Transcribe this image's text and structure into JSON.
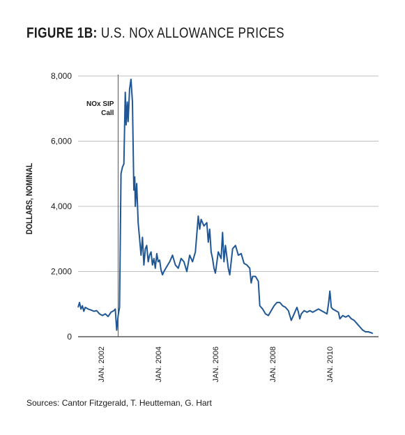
{
  "title": {
    "prefix": "FIGURE 1B:",
    "text": "U.S. NOx ALLOWANCE PRICES"
  },
  "source": "Sources: Cantor Fitzgerald, T. Heutteman, G. Hart",
  "colors": {
    "line": "#1f5796",
    "grid": "#bfbfbf",
    "annotation": "#555555",
    "text": "#1a1a1a"
  },
  "chart_data": {
    "type": "line",
    "title": "U.S. NOx ALLOWANCE PRICES",
    "ylabel": "DOLLARS, NOMINAL",
    "xlabel": "",
    "ylim": [
      0,
      8000
    ],
    "xlim": [
      2001.2,
      2011.7
    ],
    "yticks": [
      0,
      2000,
      4000,
      6000,
      8000
    ],
    "ytick_labels": [
      "0",
      "2,000",
      "4,000",
      "6,000",
      "8,000"
    ],
    "xticks": [
      2002,
      2004,
      2006,
      2008,
      2010
    ],
    "xtick_labels": [
      "JAN. 2002",
      "JAN. 2004",
      "JAN. 2006",
      "JAN. 2008",
      "JAN. 2010"
    ],
    "grid": "horizontal",
    "annotation": {
      "text": [
        "NOx SIP",
        "Call"
      ],
      "x": 2002.6
    },
    "series": [
      {
        "points": [
          [
            2001.2,
            900
          ],
          [
            2001.25,
            1050
          ],
          [
            2001.3,
            850
          ],
          [
            2001.35,
            950
          ],
          [
            2001.4,
            780
          ],
          [
            2001.45,
            900
          ],
          [
            2001.55,
            850
          ],
          [
            2001.65,
            820
          ],
          [
            2001.75,
            780
          ],
          [
            2001.85,
            800
          ],
          [
            2001.95,
            700
          ],
          [
            2002.05,
            650
          ],
          [
            2002.15,
            700
          ],
          [
            2002.25,
            620
          ],
          [
            2002.35,
            750
          ],
          [
            2002.45,
            800
          ],
          [
            2002.5,
            850
          ],
          [
            2002.55,
            200
          ],
          [
            2002.6,
            650
          ],
          [
            2002.65,
            900
          ],
          [
            2002.7,
            5000
          ],
          [
            2002.75,
            5200
          ],
          [
            2002.8,
            5300
          ],
          [
            2002.85,
            7500
          ],
          [
            2002.88,
            6500
          ],
          [
            2002.92,
            7200
          ],
          [
            2002.95,
            6600
          ],
          [
            2003.0,
            7600
          ],
          [
            2003.05,
            7900
          ],
          [
            2003.1,
            7200
          ],
          [
            2003.15,
            4500
          ],
          [
            2003.18,
            4900
          ],
          [
            2003.2,
            4000
          ],
          [
            2003.25,
            4700
          ],
          [
            2003.3,
            3500
          ],
          [
            2003.35,
            3000
          ],
          [
            2003.4,
            2500
          ],
          [
            2003.45,
            3050
          ],
          [
            2003.5,
            2200
          ],
          [
            2003.55,
            2700
          ],
          [
            2003.6,
            2800
          ],
          [
            2003.65,
            2300
          ],
          [
            2003.7,
            2500
          ],
          [
            2003.75,
            2600
          ],
          [
            2003.8,
            2200
          ],
          [
            2003.85,
            2400
          ],
          [
            2003.9,
            2100
          ],
          [
            2003.95,
            2550
          ],
          [
            2004.0,
            2300
          ],
          [
            2004.05,
            2350
          ],
          [
            2004.1,
            2050
          ],
          [
            2004.15,
            1900
          ],
          [
            2004.2,
            2000
          ],
          [
            2004.3,
            2150
          ],
          [
            2004.4,
            2300
          ],
          [
            2004.5,
            2500
          ],
          [
            2004.6,
            2200
          ],
          [
            2004.7,
            2100
          ],
          [
            2004.8,
            2400
          ],
          [
            2004.9,
            2300
          ],
          [
            2005.0,
            2000
          ],
          [
            2005.1,
            2500
          ],
          [
            2005.2,
            2300
          ],
          [
            2005.3,
            2600
          ],
          [
            2005.4,
            3700
          ],
          [
            2005.45,
            3300
          ],
          [
            2005.5,
            3600
          ],
          [
            2005.6,
            3400
          ],
          [
            2005.7,
            3500
          ],
          [
            2005.75,
            2900
          ],
          [
            2005.8,
            3300
          ],
          [
            2005.85,
            2600
          ],
          [
            2005.9,
            2400
          ],
          [
            2005.95,
            2100
          ],
          [
            2006.0,
            1950
          ],
          [
            2006.1,
            2600
          ],
          [
            2006.2,
            2400
          ],
          [
            2006.25,
            3200
          ],
          [
            2006.3,
            2300
          ],
          [
            2006.35,
            2800
          ],
          [
            2006.45,
            2100
          ],
          [
            2006.5,
            1900
          ],
          [
            2006.6,
            2700
          ],
          [
            2006.7,
            2800
          ],
          [
            2006.8,
            2500
          ],
          [
            2006.9,
            2550
          ],
          [
            2007.0,
            2250
          ],
          [
            2007.1,
            2200
          ],
          [
            2007.2,
            2100
          ],
          [
            2007.25,
            1650
          ],
          [
            2007.3,
            1850
          ],
          [
            2007.4,
            1850
          ],
          [
            2007.5,
            1700
          ],
          [
            2007.55,
            950
          ],
          [
            2007.65,
            850
          ],
          [
            2007.75,
            700
          ],
          [
            2007.85,
            650
          ],
          [
            2007.95,
            800
          ],
          [
            2008.05,
            950
          ],
          [
            2008.15,
            1050
          ],
          [
            2008.25,
            1050
          ],
          [
            2008.35,
            950
          ],
          [
            2008.45,
            900
          ],
          [
            2008.55,
            800
          ],
          [
            2008.6,
            650
          ],
          [
            2008.65,
            500
          ],
          [
            2008.75,
            700
          ],
          [
            2008.85,
            900
          ],
          [
            2008.9,
            750
          ],
          [
            2008.95,
            550
          ],
          [
            2009.0,
            700
          ],
          [
            2009.1,
            800
          ],
          [
            2009.2,
            750
          ],
          [
            2009.3,
            800
          ],
          [
            2009.4,
            750
          ],
          [
            2009.5,
            800
          ],
          [
            2009.6,
            850
          ],
          [
            2009.7,
            800
          ],
          [
            2009.8,
            750
          ],
          [
            2009.9,
            700
          ],
          [
            2009.95,
            1000
          ],
          [
            2010.0,
            1400
          ],
          [
            2010.05,
            900
          ],
          [
            2010.1,
            850
          ],
          [
            2010.2,
            800
          ],
          [
            2010.3,
            750
          ],
          [
            2010.35,
            550
          ],
          [
            2010.45,
            650
          ],
          [
            2010.55,
            600
          ],
          [
            2010.65,
            650
          ],
          [
            2010.75,
            550
          ],
          [
            2010.85,
            500
          ],
          [
            2010.95,
            400
          ],
          [
            2011.05,
            300
          ],
          [
            2011.15,
            200
          ],
          [
            2011.25,
            150
          ],
          [
            2011.35,
            150
          ],
          [
            2011.45,
            120
          ],
          [
            2011.5,
            100
          ]
        ]
      }
    ]
  }
}
